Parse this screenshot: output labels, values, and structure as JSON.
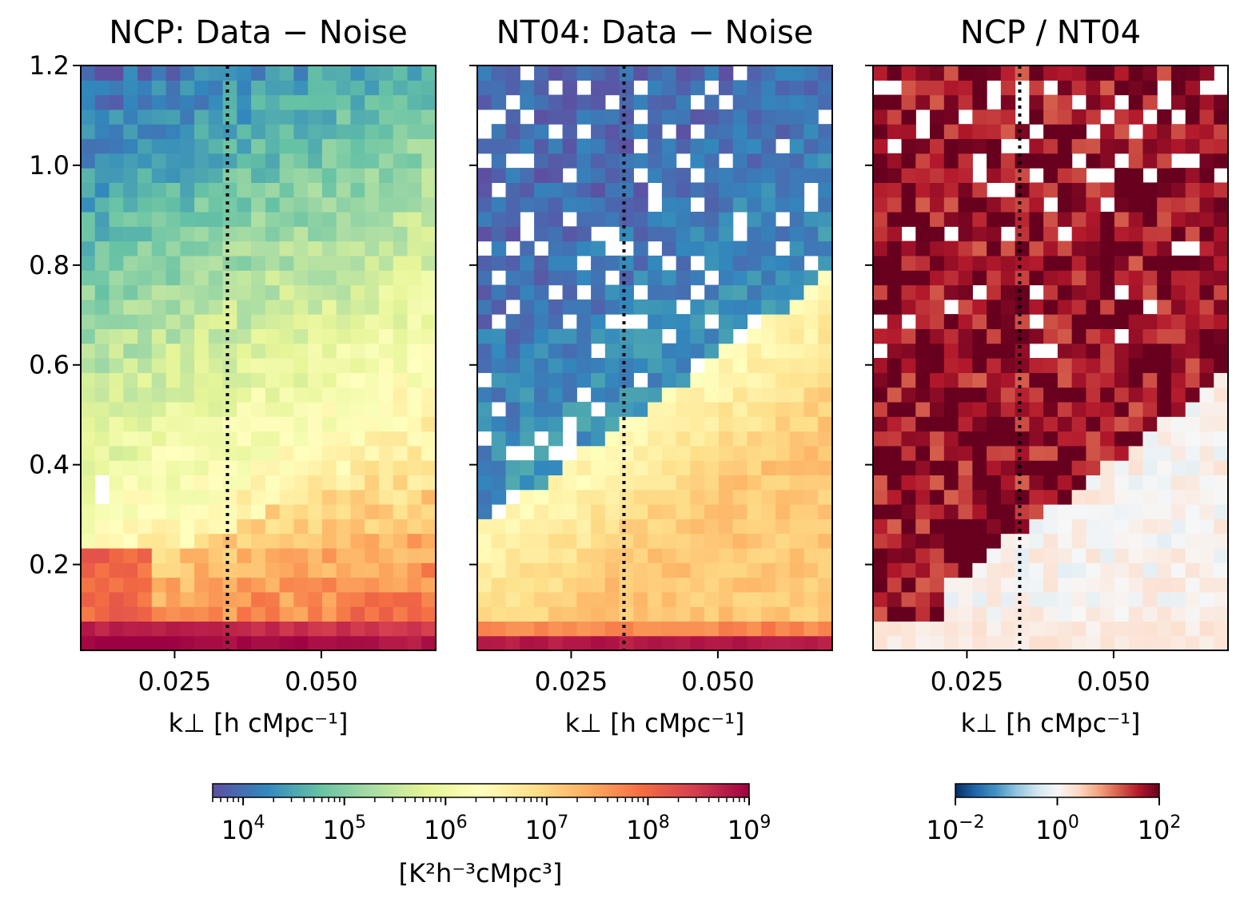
{
  "chart_data": [
    {
      "type": "heatmap",
      "title": "NCP: Data − Noise",
      "xlabel": "k⊥ [h cMpc⁻¹]",
      "ylabel": "",
      "xlim": [
        0.009,
        0.0695
      ],
      "ylim": [
        0.028,
        1.2
      ],
      "xticks": [
        "0.025",
        "0.050"
      ],
      "yticks": [
        "0.2",
        "0.4",
        "0.6",
        "0.8",
        "1.0",
        "1.2"
      ],
      "grid_shape": [
        25,
        40
      ],
      "vline_x": 0.034,
      "colorscale": "Spectral_r (log)",
      "blank_cells": [
        [
          1,
          28
        ],
        [
          1,
          29
        ]
      ],
      "description": "Power rises toward low k_par; strongest (~1e9) along bottom rows; ~1e5 at high k_par, low k_perp"
    },
    {
      "type": "heatmap",
      "title": "NT04: Data − Noise",
      "xlabel": "k⊥ [h cMpc⁻¹]",
      "ylabel": "",
      "xlim": [
        0.009,
        0.0695
      ],
      "ylim": [
        0.028,
        1.2
      ],
      "xticks": [
        "0.025",
        "0.050"
      ],
      "yticks": [
        "",
        "",
        "",
        "",
        "",
        ""
      ],
      "grid_shape": [
        25,
        40
      ],
      "vline_x": 0.034,
      "colorscale": "Spectral_r (log)",
      "description": "Low power (~1e4) across most high k_par region with many blank (negative) cells; rising to ~1e9 along bottom row"
    },
    {
      "type": "heatmap",
      "title": "NCP / NT04",
      "xlabel": "k⊥ [h cMpc⁻¹]",
      "ylabel": "",
      "xlim": [
        0.009,
        0.0695
      ],
      "ylim": [
        0.028,
        1.2
      ],
      "xticks": [
        "0.025",
        "0.050"
      ],
      "yticks": [
        "",
        "",
        "",
        "",
        "",
        ""
      ],
      "grid_shape": [
        25,
        40
      ],
      "vline_x": 0.034,
      "colorscale": "RdBu_r (log)",
      "description": "Ratio ~1e2 (dark red) above the wedge, ~1 (white/light blue) below the wedge and along the bottom rows"
    }
  ],
  "colorbars": [
    {
      "tick_labels": [
        [
          "10",
          "4"
        ],
        [
          "10",
          "5"
        ],
        [
          "10",
          "6"
        ],
        [
          "10",
          "7"
        ],
        [
          "10",
          "8"
        ],
        [
          "10",
          "9"
        ]
      ],
      "label": "[K²h⁻³cMpc³]",
      "range": [
        5000,
        1000000000
      ]
    },
    {
      "tick_labels": [
        [
          "10",
          "−2"
        ],
        [
          "10",
          "0"
        ],
        [
          "10",
          "2"
        ]
      ],
      "label": "",
      "range": [
        0.01,
        100
      ]
    }
  ]
}
